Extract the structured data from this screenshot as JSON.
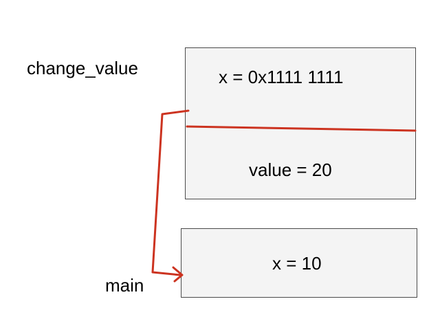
{
  "frames": {
    "change_value": {
      "label": "change_value",
      "top_cell": "x = 0x1111 1111",
      "bottom_cell": "value = 20"
    },
    "main": {
      "label": "main",
      "cell": "x = 10"
    }
  },
  "colors": {
    "accent": "#cc3320",
    "frame_fill": "#f4f4f4",
    "frame_border": "#4a4a4a"
  },
  "arrow": {
    "from": "change_value.top_cell",
    "to": "main.cell"
  }
}
